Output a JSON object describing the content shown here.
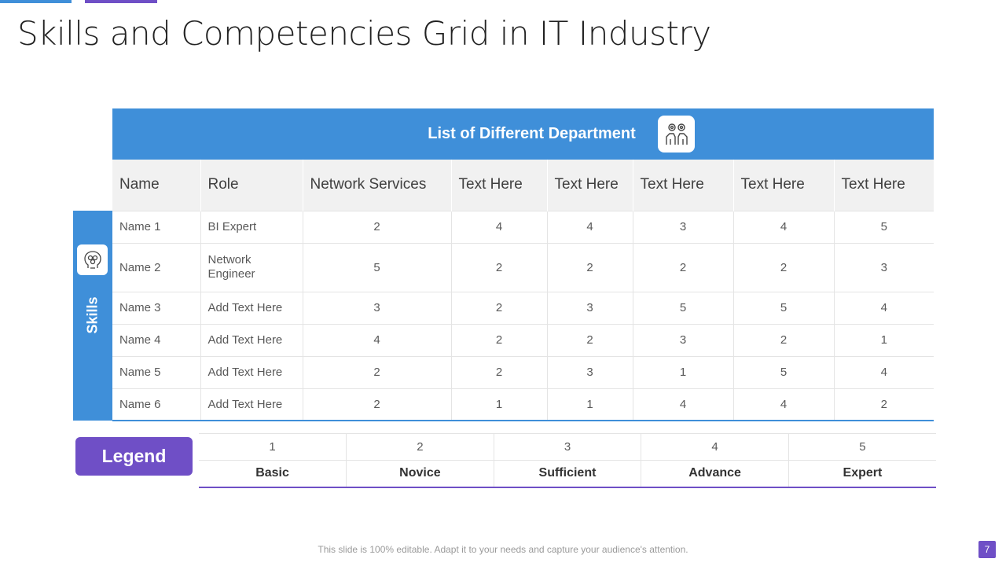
{
  "title": "Skills and Competencies Grid in IT Industry",
  "department_header": "List of Different Department",
  "skills_label": "Skills",
  "columns": [
    "Name",
    "Role",
    "Network Services",
    "Text Here",
    "Text Here",
    "Text Here",
    "Text Here",
    "Text Here"
  ],
  "rows": [
    {
      "name": "Name 1",
      "role": "BI Expert",
      "values": [
        "2",
        "4",
        "4",
        "3",
        "4",
        "5"
      ]
    },
    {
      "name": "Name 2",
      "role": "Network Engineer",
      "values": [
        "5",
        "2",
        "2",
        "2",
        "2",
        "3"
      ]
    },
    {
      "name": "Name 3",
      "role": "Add Text Here",
      "values": [
        "3",
        "2",
        "3",
        "5",
        "5",
        "4"
      ]
    },
    {
      "name": "Name 4",
      "role": "Add Text Here",
      "values": [
        "4",
        "2",
        "2",
        "3",
        "2",
        "1"
      ]
    },
    {
      "name": "Name 5",
      "role": "Add Text Here",
      "values": [
        "2",
        "2",
        "3",
        "1",
        "5",
        "4"
      ]
    },
    {
      "name": "Name 6",
      "role": "Add Text Here",
      "values": [
        "2",
        "1",
        "1",
        "4",
        "4",
        "2"
      ]
    }
  ],
  "legend": {
    "label": "Legend",
    "numbers": [
      "1",
      "2",
      "3",
      "4",
      "5"
    ],
    "levels": [
      "Basic",
      "Novice",
      "Sufficient",
      "Advance",
      "Expert"
    ]
  },
  "footer_note": "This slide is 100% editable. Adapt it to your needs and capture your audience's attention.",
  "page_number": "7",
  "icons": {
    "department": "team-gears-icon",
    "skills": "brain-head-icon"
  },
  "colors": {
    "blue": "#3f8fd9",
    "purple": "#6f4fc6"
  }
}
